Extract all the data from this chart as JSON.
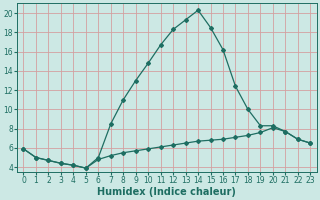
{
  "title": "",
  "xlabel": "Humidex (Indice chaleur)",
  "bg_color": "#cce8e4",
  "grid_color": "#d4a0a0",
  "line_color": "#1e6e62",
  "xlim": [
    -0.5,
    23.5
  ],
  "ylim": [
    3.5,
    21.0
  ],
  "xticks": [
    0,
    1,
    2,
    3,
    4,
    5,
    6,
    7,
    8,
    9,
    10,
    11,
    12,
    13,
    14,
    15,
    16,
    17,
    18,
    19,
    20,
    21,
    22,
    23
  ],
  "yticks": [
    4,
    6,
    8,
    10,
    12,
    14,
    16,
    18,
    20
  ],
  "line1_x": [
    0,
    1,
    2,
    3,
    4,
    5,
    6,
    7,
    8,
    9,
    10,
    11,
    12,
    13,
    14,
    15,
    16,
    17,
    18,
    19,
    20,
    21,
    22,
    23
  ],
  "line1_y": [
    5.9,
    5.0,
    4.7,
    4.4,
    4.2,
    3.9,
    5.0,
    8.5,
    11.0,
    13.0,
    14.8,
    16.7,
    18.3,
    19.3,
    20.3,
    18.5,
    16.2,
    12.4,
    10.0,
    8.3,
    8.3,
    7.7,
    6.9,
    6.5
  ],
  "line2_x": [
    0,
    1,
    2,
    3,
    4,
    5,
    6,
    7,
    8,
    9,
    10,
    11,
    12,
    13,
    14,
    15,
    16,
    17,
    18,
    19,
    20,
    21,
    22,
    23
  ],
  "line2_y": [
    5.9,
    5.0,
    4.7,
    4.4,
    4.2,
    3.9,
    4.8,
    5.2,
    5.5,
    5.7,
    5.9,
    6.1,
    6.3,
    6.5,
    6.7,
    6.8,
    6.9,
    7.1,
    7.3,
    7.6,
    8.1,
    7.7,
    6.9,
    6.5
  ],
  "marker": "D",
  "markersize": 2.0,
  "linewidth": 0.9,
  "xlabel_fontsize": 7,
  "tick_fontsize": 5.5
}
